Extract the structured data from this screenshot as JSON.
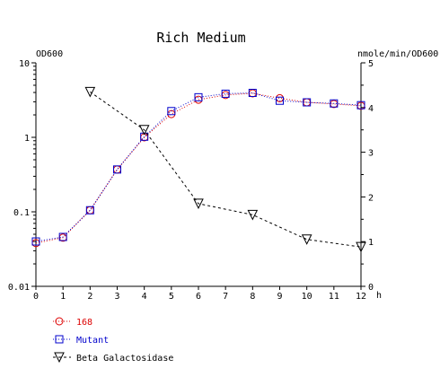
{
  "chart_data": {
    "type": "line",
    "title": "Rich Medium",
    "xlabel": "h",
    "ylabel_left": "OD600",
    "ylabel_right": "nmole/min/OD600",
    "x_ticks": [
      "0",
      "1",
      "2",
      "3",
      "4",
      "5",
      "6",
      "7",
      "8",
      "9",
      "10",
      "11",
      "12"
    ],
    "y_left_ticks": [
      "10",
      "1",
      "0.1",
      "0.01"
    ],
    "y_right_ticks": [
      "5",
      "4",
      "3",
      "2",
      "1",
      "0"
    ],
    "xlim": [
      0,
      12
    ],
    "ylim_left": [
      0.01,
      10
    ],
    "y_left_scale": "log",
    "ylim_right": [
      0,
      5
    ],
    "grid": false,
    "legend_position": "bottom-left",
    "series": [
      {
        "name": "168",
        "axis": "left",
        "marker": "circle",
        "color": "#dd0000",
        "line": "dotted",
        "x": [
          0,
          1,
          2,
          3,
          4,
          5,
          6,
          7,
          8,
          9,
          10,
          11,
          12
        ],
        "y": [
          0.038,
          0.045,
          0.105,
          0.37,
          1.0,
          2.05,
          3.2,
          3.7,
          3.9,
          3.35,
          2.95,
          2.8,
          2.65
        ]
      },
      {
        "name": "Mutant",
        "axis": "left",
        "marker": "square",
        "color": "#0000cc",
        "line": "dotted",
        "x": [
          0,
          1,
          2,
          3,
          4,
          5,
          6,
          7,
          8,
          9,
          10,
          11,
          12
        ],
        "y": [
          0.04,
          0.046,
          0.105,
          0.37,
          1.02,
          2.25,
          3.45,
          3.85,
          3.95,
          3.1,
          2.95,
          2.85,
          2.7
        ]
      },
      {
        "name": "Beta Galactosidase",
        "axis": "right",
        "marker": "triangle-down",
        "color": "#000000",
        "line": "dashed",
        "x": [
          2,
          4,
          6,
          8,
          10,
          12
        ],
        "y": [
          4.35,
          3.5,
          1.85,
          1.6,
          1.05,
          0.88
        ]
      }
    ]
  }
}
